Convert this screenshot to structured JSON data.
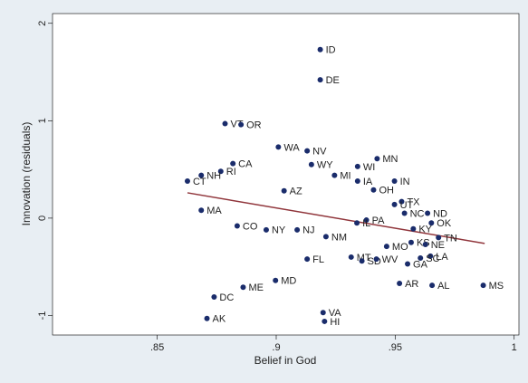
{
  "chart_data": {
    "type": "scatter",
    "x_label": "Belief in God",
    "y_label": "Innovation (residuals)",
    "labels": [
      "ID",
      "DE",
      "VT",
      "OR",
      "WA",
      "NV",
      "MN",
      "CA",
      "WY",
      "WI",
      "RI",
      "NH",
      "MI",
      "IA",
      "IN",
      "CT",
      "OH",
      "AZ",
      "TX",
      "UT",
      "ND",
      "NC",
      "MA",
      "PA",
      "IL",
      "OK",
      "CO",
      "KY",
      "NY",
      "NJ",
      "NM",
      "TN",
      "KS",
      "NE",
      "MO",
      "LA",
      "MT",
      "SC",
      "FL",
      "SD",
      "WV",
      "GA",
      "MD",
      "AR",
      "AL",
      "MS",
      "ME",
      "DC",
      "VA",
      "AK",
      "HI"
    ],
    "x": [
      0.9185,
      0.9185,
      0.8785,
      0.8852,
      0.9009,
      0.913,
      0.9424,
      0.8818,
      0.9148,
      0.9342,
      0.8767,
      0.8685,
      0.9245,
      0.9342,
      0.9497,
      0.8627,
      0.9409,
      0.9033,
      0.9527,
      0.9497,
      0.9636,
      0.9539,
      0.8685,
      0.9379,
      0.9339,
      0.9652,
      0.8836,
      0.9576,
      0.8958,
      0.9088,
      0.9209,
      0.9682,
      0.9567,
      0.9627,
      0.9464,
      0.9648,
      0.9315,
      0.9606,
      0.913,
      0.936,
      0.9421,
      0.9552,
      0.8997,
      0.9518,
      0.9655,
      0.987,
      0.8861,
      0.8739,
      0.9197,
      0.8709,
      0.9203
    ],
    "y": [
      1.73,
      1.42,
      0.97,
      0.96,
      0.73,
      0.69,
      0.61,
      0.56,
      0.55,
      0.53,
      0.48,
      0.44,
      0.44,
      0.38,
      0.38,
      0.38,
      0.29,
      0.28,
      0.17,
      0.14,
      0.05,
      0.05,
      0.08,
      -0.02,
      -0.05,
      -0.05,
      -0.08,
      -0.11,
      -0.12,
      -0.12,
      -0.19,
      -0.2,
      -0.25,
      -0.27,
      -0.29,
      -0.39,
      -0.4,
      -0.41,
      -0.42,
      -0.44,
      -0.42,
      -0.47,
      -0.64,
      -0.67,
      -0.69,
      -0.69,
      -0.71,
      -0.81,
      -0.97,
      -1.03,
      -1.06
    ],
    "color": "#1a2c6b",
    "fit_line": {
      "x": [
        0.8627,
        0.9876
      ],
      "y": [
        0.26,
        -0.26
      ],
      "color": "#90353b"
    },
    "xlim": [
      0.806,
      1.002
    ],
    "ylim": [
      -1.2,
      2.1
    ],
    "xticks": [
      {
        "value": 0.85,
        "label": ".85"
      },
      {
        "value": 0.9,
        "label": ".9"
      },
      {
        "value": 0.95,
        "label": ".95"
      },
      1
    ],
    "yticks": [
      -1,
      0,
      1,
      2
    ]
  }
}
